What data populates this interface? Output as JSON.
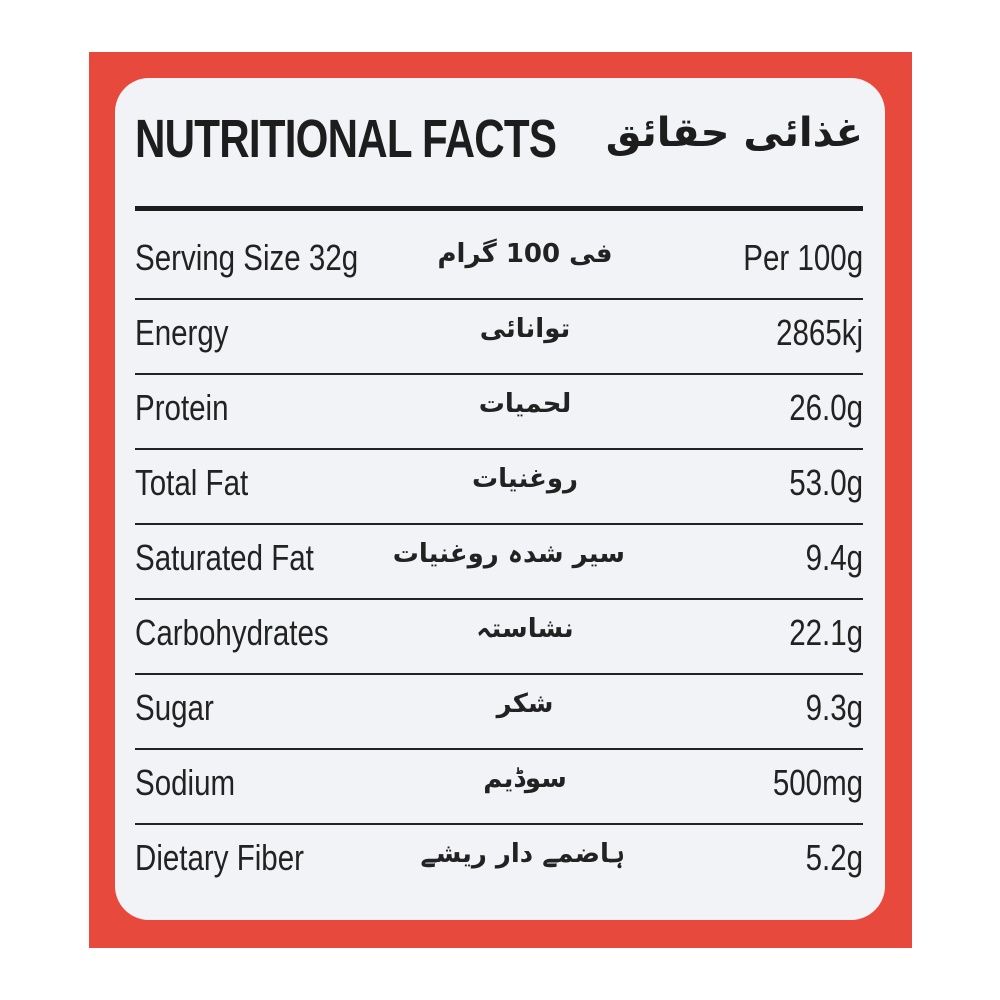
{
  "label": {
    "title": "NUTRITIONAL FACTS",
    "title_urdu": "غذائی حقائق",
    "header": {
      "serving": "Serving Size 32g",
      "urdu": "فی 100 گرام",
      "per": "Per 100g"
    },
    "rows": [
      {
        "name": "Energy",
        "urdu": "توانائی",
        "value": "2865kj"
      },
      {
        "name": "Protein",
        "urdu": "لحمیات",
        "value": "26.0g"
      },
      {
        "name": "Total Fat",
        "urdu": "روغنیات",
        "value": "53.0g"
      },
      {
        "name": "Saturated Fat",
        "urdu": "سیر شدہ روغنیات",
        "value": "9.4g"
      },
      {
        "name": "Carbohydrates",
        "urdu": "نشاستہ",
        "value": "22.1g"
      },
      {
        "name": "Sugar",
        "urdu": "شکر",
        "value": "9.3g"
      },
      {
        "name": "Sodium",
        "urdu": "سوڈیم",
        "value": "500mg"
      },
      {
        "name": "Dietary Fiber",
        "urdu": "ہاضمے دار ریشے",
        "value": "5.2g"
      }
    ]
  },
  "colors": {
    "background_red": "#e8493d",
    "label_white": "#f2f3f7",
    "text": "#1d1d1d"
  }
}
